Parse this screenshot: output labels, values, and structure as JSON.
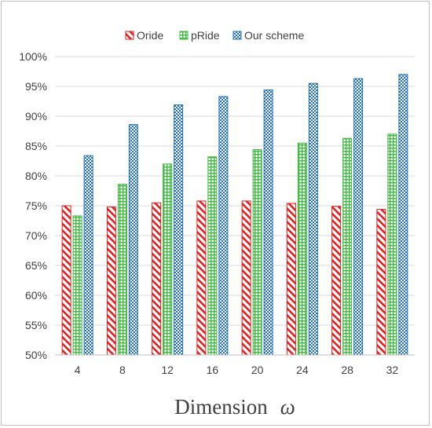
{
  "chart_data": {
    "type": "bar",
    "categories": [
      "4",
      "8",
      "12",
      "16",
      "20",
      "24",
      "28",
      "32"
    ],
    "series": [
      {
        "name": "Oride",
        "values": [
          75.0,
          74.8,
          75.5,
          75.8,
          75.8,
          75.4,
          74.9,
          74.4
        ],
        "color": "#e02020",
        "pattern": "diagonal-hatch"
      },
      {
        "name": "pRide",
        "values": [
          73.3,
          78.6,
          82.0,
          83.2,
          84.4,
          85.5,
          86.3,
          87.0
        ],
        "color": "#3fb93f",
        "pattern": "grid"
      },
      {
        "name": "Our scheme",
        "values": [
          83.4,
          88.6,
          91.9,
          93.3,
          94.4,
          95.5,
          96.3,
          97.0
        ],
        "color": "#1f6fc0",
        "pattern": "checker"
      }
    ],
    "y_ticks": [
      "50%",
      "55%",
      "60%",
      "65%",
      "70%",
      "75%",
      "80%",
      "85%",
      "90%",
      "95%",
      "100%"
    ],
    "ylim": [
      50,
      100
    ],
    "xlabel": "Dimension",
    "xlabel_symbol": "ω",
    "ylabel": "",
    "title": "",
    "grid": "horizontal",
    "legend_position": "top"
  }
}
